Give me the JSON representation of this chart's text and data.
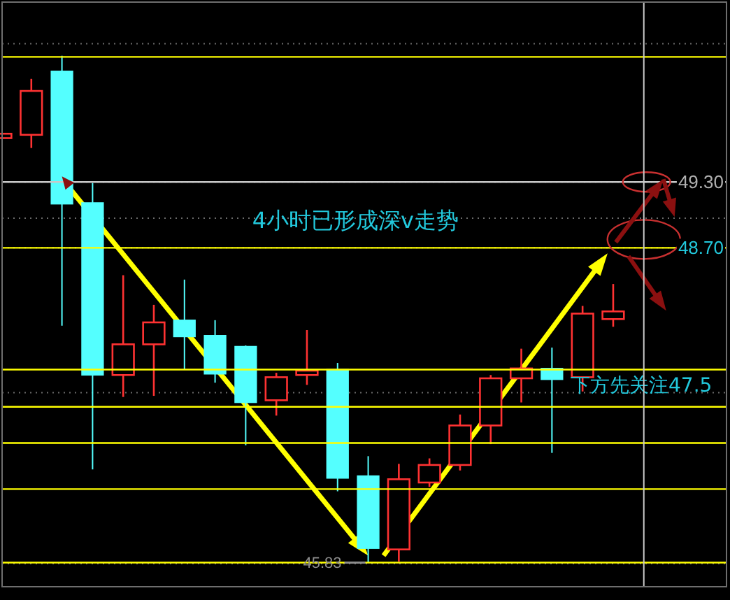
{
  "chart_data": {
    "type": "candlestick",
    "categories": [
      null,
      null,
      null,
      null,
      null,
      null,
      null,
      null,
      null,
      null,
      null,
      null,
      null,
      null,
      null,
      null,
      null,
      null,
      null,
      null,
      null
    ],
    "ohlc": [
      [
        49.7,
        49.74,
        49.7,
        49.74
      ],
      [
        49.73,
        50.24,
        49.61,
        50.13
      ],
      [
        50.31,
        50.45,
        47.99,
        49.1
      ],
      [
        49.11,
        49.29,
        46.68,
        47.54
      ],
      [
        47.54,
        48.45,
        47.34,
        47.82
      ],
      [
        47.82,
        48.18,
        47.35,
        48.02
      ],
      [
        48.04,
        48.41,
        47.59,
        47.89
      ],
      [
        47.9,
        48.04,
        47.47,
        47.55
      ],
      [
        47.8,
        47.81,
        46.9,
        47.29
      ],
      [
        47.31,
        47.56,
        47.17,
        47.52
      ],
      [
        47.54,
        47.95,
        47.45,
        47.58
      ],
      [
        47.59,
        47.65,
        46.48,
        46.6
      ],
      [
        46.62,
        46.8,
        45.83,
        45.96
      ],
      [
        45.95,
        46.73,
        45.84,
        46.59
      ],
      [
        46.56,
        46.78,
        46.52,
        46.72
      ],
      [
        46.72,
        47.18,
        46.67,
        47.08
      ],
      [
        47.08,
        47.54,
        46.91,
        47.51
      ],
      [
        47.51,
        47.78,
        47.29,
        47.6
      ],
      [
        47.6,
        47.79,
        46.83,
        47.5
      ],
      [
        47.52,
        48.17,
        47.39,
        48.1
      ],
      [
        48.05,
        48.37,
        47.98,
        48.12
      ]
    ],
    "colors": [
      "#ff3232",
      "#ff3232",
      "#54ffff",
      "#54ffff",
      "#ff3232",
      "#ff3232",
      "#54ffff",
      "#54ffff",
      "#54ffff",
      "#ff3232",
      "#ff3232",
      "#54ffff",
      "#54ffff",
      "#ff3232",
      "#ff3232",
      "#ff3232",
      "#ff3232",
      "#ff3232",
      "#54ffff",
      "#ff3232",
      "#ff3232"
    ],
    "ylim": [
      45.61,
      50.94
    ],
    "yticks": [
      {
        "value": 50.56,
        "label": null
      },
      {
        "value": 49.3,
        "label": "49.30"
      },
      {
        "value": 48.97,
        "label": null
      },
      {
        "value": 48.7,
        "label": "48.70"
      },
      {
        "value": 47.38,
        "label": null
      },
      {
        "value": 45.82,
        "label": null
      }
    ],
    "grid": "y",
    "tick_labels": "y",
    "ref_lines": [
      {
        "axis": "y",
        "value": 49.3,
        "color": "#c8c8c8"
      },
      {
        "axis": "y",
        "value": 48.7,
        "color": "#ffff00"
      },
      {
        "axis": "y",
        "value": 50.44,
        "color": "#ffff00"
      },
      {
        "axis": "y",
        "value": 47.59,
        "color": "#ffff00"
      },
      {
        "axis": "y",
        "value": 47.25,
        "color": "#ffff00"
      },
      {
        "axis": "y",
        "value": 46.92,
        "color": "#ffff00"
      },
      {
        "axis": "y",
        "value": 46.5,
        "color": "#ffff00"
      },
      {
        "axis": "y",
        "value": 45.83,
        "color": "#ffff00"
      }
    ],
    "annotations": [
      "4小时已形成深v走势",
      "下方先关注47.5",
      {
        "text": "45.83",
        "y": 45.83
      }
    ]
  }
}
